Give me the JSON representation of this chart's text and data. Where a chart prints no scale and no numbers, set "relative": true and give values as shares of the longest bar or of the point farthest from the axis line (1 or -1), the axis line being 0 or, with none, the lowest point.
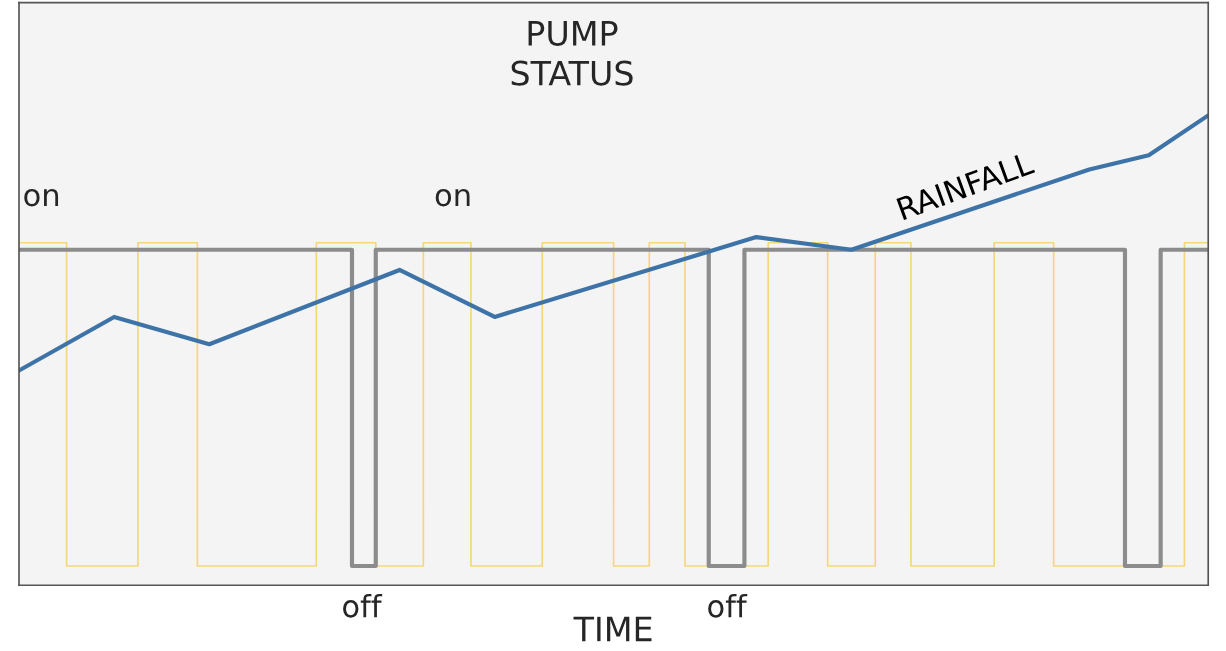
{
  "chart_data": {
    "type": "line",
    "title": "PUMP\nSTATUS",
    "xlabel": "TIME",
    "relative": true,
    "tick_labels": false,
    "categories": [
      null,
      null,
      null,
      null,
      null,
      null,
      null,
      null,
      null,
      null,
      null,
      null,
      null,
      null,
      null,
      null,
      null,
      null,
      null,
      null,
      null,
      null,
      null,
      null,
      null,
      null,
      null,
      null,
      null,
      null,
      null,
      null,
      null,
      null,
      null,
      null,
      null,
      null,
      null,
      null,
      null,
      null,
      null,
      null,
      null,
      null,
      null,
      null,
      null,
      null,
      null,
      null,
      null,
      null,
      null,
      null,
      null,
      null,
      null,
      null,
      null,
      null,
      null,
      null,
      null,
      null,
      null,
      null,
      null,
      null,
      null,
      null,
      null,
      null,
      null,
      null,
      null,
      null,
      null,
      null,
      null,
      null,
      null,
      null,
      null,
      null,
      null,
      null,
      null,
      null,
      null,
      null,
      null,
      null,
      null,
      null,
      null,
      null,
      null,
      null,
      null
    ],
    "series": [
      {
        "type": "step",
        "color": "#f5d67a",
        "values": [
          0.729,
          null,
          null,
          null,
          0.041,
          null,
          null,
          null,
          null,
          null,
          0.729,
          null,
          null,
          null,
          null,
          0.041,
          null,
          null,
          null,
          null,
          null,
          null,
          null,
          null,
          null,
          0.729,
          null,
          null,
          null,
          null,
          0.041,
          null,
          null,
          null,
          0.729,
          null,
          null,
          null,
          0.041,
          null,
          null,
          null,
          null,
          null,
          0.729,
          null,
          null,
          null,
          null,
          null,
          0.041,
          null,
          null,
          0.729,
          null,
          null,
          0.041,
          null,
          null,
          null,
          null,
          null,
          null,
          0.729,
          null,
          null,
          null,
          null,
          0.041,
          null,
          null,
          null,
          0.729,
          null,
          null,
          0.041,
          null,
          null,
          null,
          null,
          null,
          null,
          0.729,
          null,
          null,
          null,
          null,
          0.041,
          null,
          null,
          null,
          null,
          null,
          null,
          null,
          null,
          null,
          null,
          0.729,
          null,
          0.729
        ]
      },
      {
        "type": "step",
        "color": "#8c8c8c",
        "values": [
          0.714,
          null,
          null,
          null,
          null,
          null,
          null,
          null,
          null,
          null,
          null,
          null,
          null,
          null,
          null,
          null,
          null,
          null,
          null,
          null,
          null,
          null,
          null,
          null,
          null,
          null,
          null,
          null,
          0.041,
          null,
          0.714,
          null,
          null,
          null,
          null,
          null,
          null,
          null,
          null,
          null,
          null,
          null,
          null,
          null,
          null,
          null,
          null,
          null,
          null,
          null,
          null,
          null,
          null,
          null,
          null,
          null,
          null,
          null,
          0.041,
          null,
          null,
          0.714,
          null,
          null,
          null,
          null,
          null,
          null,
          null,
          null,
          null,
          null,
          null,
          null,
          null,
          null,
          null,
          null,
          null,
          null,
          null,
          null,
          null,
          null,
          null,
          null,
          null,
          null,
          null,
          null,
          null,
          null,
          null,
          0.041,
          null,
          null,
          0.714,
          null,
          null,
          null,
          0.714
        ]
      },
      {
        "name": "RAINFALL",
        "color": "#3e73a8",
        "values": [
          0.457,
          null,
          null,
          null,
          null,
          null,
          null,
          null,
          0.571,
          null,
          null,
          null,
          null,
          null,
          null,
          null,
          0.513,
          null,
          null,
          null,
          null,
          null,
          null,
          null,
          null,
          null,
          null,
          null,
          null,
          null,
          null,
          null,
          0.671,
          null,
          null,
          null,
          null,
          null,
          null,
          null,
          0.571,
          null,
          null,
          null,
          null,
          null,
          null,
          null,
          null,
          null,
          null,
          null,
          null,
          null,
          null,
          null,
          null,
          null,
          null,
          null,
          null,
          null,
          0.741,
          null,
          null,
          null,
          null,
          null,
          null,
          null,
          0.714,
          null,
          null,
          null,
          null,
          null,
          null,
          null,
          null,
          null,
          null,
          null,
          null,
          null,
          null,
          null,
          null,
          null,
          null,
          null,
          0.885,
          null,
          null,
          null,
          null,
          0.915,
          null,
          null,
          null,
          null,
          1
        ]
      }
    ],
    "annotations": [
      "on",
      "on",
      "off",
      "off"
    ]
  }
}
